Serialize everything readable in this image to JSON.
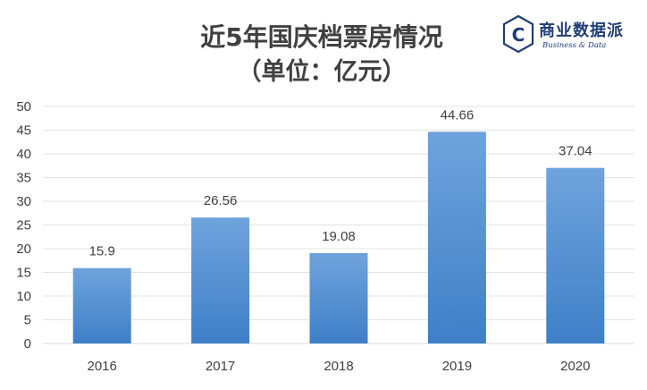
{
  "title_line1": "近5年国庆档票房情况",
  "title_line2": "（单位：亿元）",
  "logo": {
    "mark_letter": "C",
    "name": "商业数据派",
    "subtitle": "Business & Data",
    "color": "#1f3d77"
  },
  "chart_data": {
    "type": "bar",
    "categories": [
      "2016",
      "2017",
      "2018",
      "2019",
      "2020"
    ],
    "values": [
      15.9,
      26.56,
      19.08,
      44.66,
      37.04
    ],
    "value_labels": [
      "15.9",
      "26.56",
      "19.08",
      "44.66",
      "37.04"
    ],
    "title": "近5年国庆档票房情况",
    "subtitle": "（单位：亿元）",
    "xlabel": "",
    "ylabel": "",
    "ylim": [
      0,
      50
    ],
    "yticks": [
      0,
      5,
      10,
      15,
      20,
      25,
      30,
      35,
      40,
      45,
      50
    ],
    "grid": true,
    "legend": "none",
    "bar_color_top": "#6fa3dc",
    "bar_color_bottom": "#3f7fc7"
  }
}
